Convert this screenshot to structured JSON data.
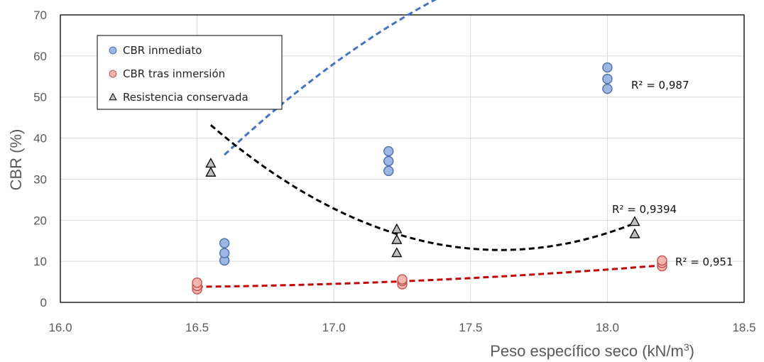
{
  "chart_data": {
    "type": "scatter",
    "title": "",
    "xlabel": "Peso específico seco (kN/m",
    "xlabel_sup": "3",
    "xlabel_close": ")",
    "ylabel": "CBR (%)",
    "xlim": [
      16.0,
      18.5
    ],
    "ylim": [
      0,
      70
    ],
    "xticks": [
      "16.0",
      "16.5",
      "17.0",
      "17.5",
      "18.0",
      "18.5"
    ],
    "yticks": [
      "0",
      "10",
      "20",
      "30",
      "40",
      "50",
      "60",
      "70"
    ],
    "grid": true,
    "legend_position": "top-left",
    "series": [
      {
        "name": "CBR inmediato",
        "marker": "circle",
        "fill": "#9db7e3",
        "stroke": "#4a6fa8",
        "trend_color": "#4472c4",
        "points": [
          [
            16.6,
            10.2
          ],
          [
            16.6,
            12.0
          ],
          [
            16.6,
            14.4
          ],
          [
            17.2,
            32.0
          ],
          [
            17.2,
            34.4
          ],
          [
            17.2,
            36.8
          ],
          [
            18.0,
            52.0
          ],
          [
            18.0,
            54.4
          ],
          [
            18.0,
            57.2
          ]
        ],
        "trend": {
          "x": [
            16.6,
            18.0
          ],
          "a": -17.321,
          "b": 637.455,
          "c": -5772.85
        },
        "r2_label": "R² = 0,987"
      },
      {
        "name": "CBR tras inmersión",
        "marker": "circle",
        "fill": "#f4b6ae",
        "stroke": "#c0504d",
        "trend_color": "#c00000",
        "points": [
          [
            16.5,
            3.2
          ],
          [
            16.5,
            4.0
          ],
          [
            16.5,
            4.8
          ],
          [
            17.25,
            4.4
          ],
          [
            17.25,
            5.2
          ],
          [
            17.25,
            5.6
          ],
          [
            18.2,
            8.8
          ],
          [
            18.2,
            9.6
          ],
          [
            18.2,
            10.2
          ]
        ],
        "trend": {
          "x": [
            16.5,
            18.2
          ],
          "a": 1.3656,
          "b": -44.307,
          "c": 363.07
        },
        "r2_label": "R² = 0,951"
      },
      {
        "name": "Resistencia conservada",
        "marker": "triangle",
        "fill": "#bfbfbf",
        "stroke": "#000000",
        "trend_color": "#000000",
        "points": [
          [
            16.55,
            31.6
          ],
          [
            16.55,
            33.8
          ],
          [
            17.23,
            12.0
          ],
          [
            17.23,
            15.2
          ],
          [
            17.23,
            17.8
          ],
          [
            18.1,
            16.6
          ],
          [
            18.1,
            19.6
          ]
        ],
        "trend": {
          "x": [
            16.55,
            18.1
          ],
          "a": 27.07,
          "b": -953.4,
          "c": 8407.4
        },
        "r2_label": "R² = 0,9394"
      }
    ]
  }
}
